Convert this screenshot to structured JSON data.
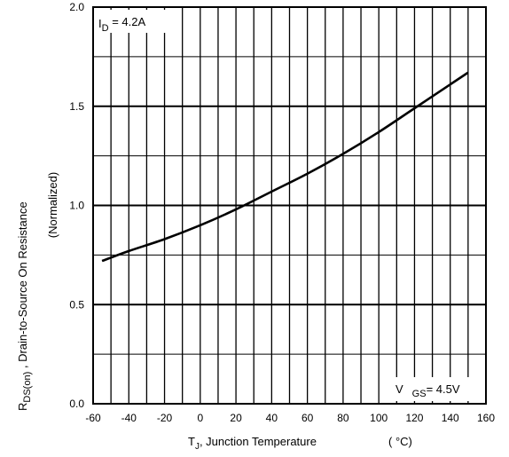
{
  "chart_data": {
    "type": "line",
    "xlim": [
      -60,
      160
    ],
    "ylim": [
      0.0,
      2.0
    ],
    "x_ticks": [
      -60,
      -40,
      -20,
      0,
      20,
      40,
      60,
      80,
      100,
      120,
      140,
      160
    ],
    "y_ticks": [
      "0.0",
      "0.5",
      "1.0",
      "1.5",
      "2.0"
    ],
    "grid": true,
    "series": [
      {
        "x": [
          -55,
          -40,
          -20,
          0,
          20,
          40,
          60,
          80,
          100,
          120,
          140,
          150
        ],
        "values": [
          0.72,
          0.77,
          0.83,
          0.9,
          0.98,
          1.07,
          1.16,
          1.26,
          1.37,
          1.49,
          1.61,
          1.67
        ]
      }
    ],
    "xlabel": {
      "main": "T",
      "sub": "J",
      "rest": ", Junction Temperature",
      "unit": "( °C)"
    },
    "ylabel": {
      "main": "R",
      "sub": "DS(on)",
      "rest": "  ,  Drain-to-Source On Resistance",
      "line2": "(Normalized)"
    },
    "annotations": {
      "id": {
        "main": "I",
        "sub": "D",
        "rest": " =  4.2A"
      },
      "vgs": {
        "main": "V",
        "sub": "GS",
        "rest": "= 4.5V"
      }
    }
  }
}
